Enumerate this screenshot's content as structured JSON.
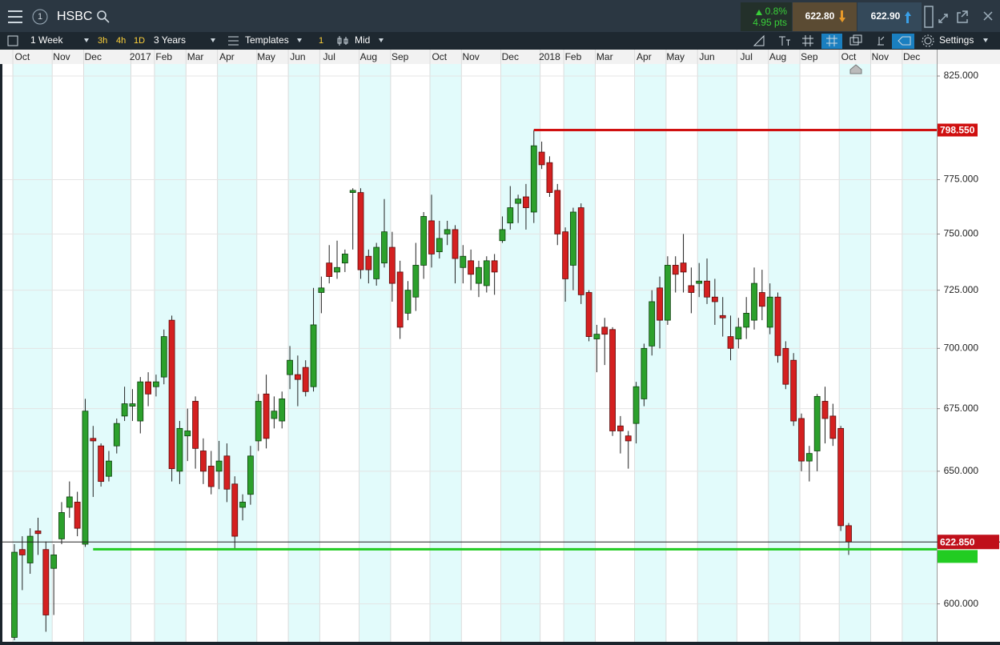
{
  "header": {
    "window_number": "1",
    "symbol": "HSBC",
    "change_pct": "0.8%",
    "change_pts": "4.95 pts",
    "sell": "622.80",
    "buy": "622.90"
  },
  "toolbar": {
    "interval": "1 Week",
    "intervals": [
      "3h",
      "4h",
      "1D"
    ],
    "range": "3 Years",
    "templates": "Templates",
    "count": "1",
    "price_type": "Mid",
    "settings": "Settings"
  },
  "chart_data": {
    "type": "candlestick",
    "categories": [
      null,
      "Oct",
      null,
      null,
      null,
      null,
      "Nov",
      null,
      null,
      null,
      "Dec",
      null,
      null,
      null,
      null,
      null,
      "2017",
      null,
      null,
      "Feb",
      null,
      null,
      null,
      "Mar",
      null,
      null,
      null,
      "Apr",
      null,
      null,
      null,
      null,
      "May",
      null,
      null,
      null,
      "Jun",
      null,
      null,
      null,
      "Jul",
      null,
      null,
      null,
      null,
      "Aug",
      null,
      null,
      null,
      "Sep",
      null,
      null,
      null,
      null,
      "Oct",
      null,
      null,
      null,
      "Nov",
      null,
      null,
      null,
      null,
      "Dec",
      null,
      null,
      null,
      null,
      "2018",
      null,
      null,
      "Feb",
      null,
      null,
      null,
      "Mar",
      null,
      null,
      null,
      null,
      "Apr",
      null,
      null,
      null,
      "May",
      null,
      null,
      null,
      "Jun",
      null,
      null,
      null,
      null,
      "Jul",
      null,
      null,
      null,
      "Aug",
      null,
      null,
      null,
      "Sep",
      null,
      null,
      null,
      null,
      "Oct",
      null,
      null,
      null,
      "Nov",
      null,
      null,
      null,
      "Dec",
      null,
      null
    ],
    "open": [
      588,
      620,
      615,
      627,
      620,
      613,
      624,
      636,
      638,
      622,
      663,
      660,
      648,
      660,
      672,
      676,
      670,
      686,
      684,
      688,
      712,
      650,
      664,
      678,
      658,
      652,
      650,
      656,
      645,
      636,
      641,
      662,
      681,
      671,
      670,
      689,
      689,
      692,
      684,
      724,
      737,
      733,
      737,
      769,
      769,
      740,
      730,
      737,
      744,
      733,
      715,
      722,
      736,
      756,
      742,
      750,
      752,
      735,
      738,
      728,
      727,
      738,
      747,
      755,
      764,
      767,
      760,
      788,
      783,
      770,
      751,
      736,
      762,
      724,
      704,
      709,
      708,
      668,
      664,
      669,
      679,
      701,
      726,
      712,
      736,
      737,
      727,
      728,
      729,
      722,
      714,
      705,
      704,
      709,
      712,
      724,
      709,
      722,
      700,
      695,
      671,
      654,
      658,
      678,
      672,
      667,
      629,
      null,
      null,
      null,
      null,
      null,
      null,
      null,
      null,
      null,
      null
    ],
    "high": [
      622,
      625,
      628,
      632,
      623,
      622,
      638,
      646,
      642,
      679,
      668,
      661,
      658,
      671,
      684,
      683,
      688,
      690,
      689,
      708,
      714,
      670,
      675,
      680,
      663,
      658,
      662,
      661,
      648,
      641,
      660,
      681,
      689,
      680,
      682,
      701,
      697,
      695,
      726,
      731,
      745,
      747,
      743,
      771,
      771,
      743,
      746,
      766,
      751,
      738,
      729,
      746,
      760,
      768,
      756,
      756,
      754,
      745,
      743,
      738,
      740,
      741,
      758,
      772,
      768,
      773,
      798.5,
      793,
      786,
      773,
      753,
      762,
      764,
      725,
      710,
      713,
      709,
      672,
      666,
      686,
      702,
      725,
      731,
      740,
      740,
      750,
      735,
      737,
      739,
      730,
      722,
      714,
      713,
      722,
      735,
      734,
      728,
      724,
      703,
      698,
      673,
      660,
      681,
      684,
      677,
      668,
      630,
      null,
      null,
      null,
      null,
      null,
      null,
      null,
      null,
      null,
      null
    ],
    "low": [
      587,
      605,
      611,
      618,
      590,
      596,
      622,
      632,
      625,
      621,
      640,
      644,
      646,
      657,
      670,
      670,
      665,
      676,
      680,
      685,
      646,
      645,
      654,
      651,
      645,
      641,
      643,
      638,
      620,
      631,
      637,
      658,
      659,
      667,
      667,
      683,
      676,
      680,
      682,
      715,
      728,
      730,
      733,
      743,
      730,
      728,
      727,
      735,
      720,
      704,
      712,
      716,
      730,
      735,
      739,
      745,
      728,
      728,
      725,
      722,
      724,
      723,
      746,
      752,
      755,
      752,
      755,
      780,
      767,
      745,
      720,
      725,
      719,
      703,
      690,
      693,
      664,
      657,
      651,
      661,
      676,
      697,
      700,
      710,
      724,
      724,
      715,
      722,
      719,
      710,
      705,
      695,
      700,
      704,
      708,
      712,
      706,
      694,
      683,
      668,
      650,
      646,
      650,
      661,
      660,
      627,
      618,
      null,
      null,
      null,
      null,
      null,
      null,
      null,
      null,
      null,
      null
    ],
    "close": [
      619,
      618,
      625,
      626,
      596,
      618,
      634,
      640,
      628,
      674,
      662,
      646,
      654,
      669,
      677,
      677,
      686,
      681,
      686,
      705,
      651,
      667,
      666,
      659,
      650,
      644,
      654,
      643,
      625,
      638,
      656,
      678,
      663,
      674,
      679,
      695,
      687,
      682,
      710,
      726,
      731,
      735,
      741,
      770,
      734,
      734,
      744,
      751,
      728,
      709,
      725,
      736,
      758,
      741,
      748,
      752,
      739,
      740,
      732,
      735,
      738,
      733,
      752,
      762,
      766,
      762,
      791,
      782,
      769,
      750,
      730,
      760,
      723,
      705,
      706,
      706,
      666,
      666,
      662,
      684,
      700,
      720,
      712,
      736,
      732,
      733,
      724,
      729,
      722,
      720,
      713,
      700,
      709,
      715,
      728,
      718,
      722,
      697,
      685,
      670,
      654,
      657,
      680,
      671,
      663,
      629,
      622.85,
      null,
      null,
      null,
      null,
      null,
      null,
      null,
      null,
      null,
      null
    ],
    "up_color": "#2ca02c",
    "down_color": "#d42020",
    "ylim": [
      587,
      831
    ],
    "log_scale": true,
    "grid": true,
    "yticks": [
      {
        "value": 825,
        "label": "825.000"
      },
      {
        "value": 775,
        "label": "775.000"
      },
      {
        "value": 750,
        "label": "750.000"
      },
      {
        "value": 725,
        "label": "725.000"
      },
      {
        "value": 700,
        "label": "700.000"
      },
      {
        "value": 675,
        "label": "675.000"
      },
      {
        "value": 650,
        "label": "650.000"
      },
      {
        "value": 600,
        "label": "600.000"
      }
    ],
    "lines": [
      {
        "value": 798.55,
        "label": "798.550",
        "color": "#d01010"
      },
      {
        "value": 622.85,
        "label": "622.850",
        "color": "#222222",
        "label_color": "#c0101a"
      },
      {
        "value": 620.1,
        "color": "#22cc22"
      }
    ]
  }
}
